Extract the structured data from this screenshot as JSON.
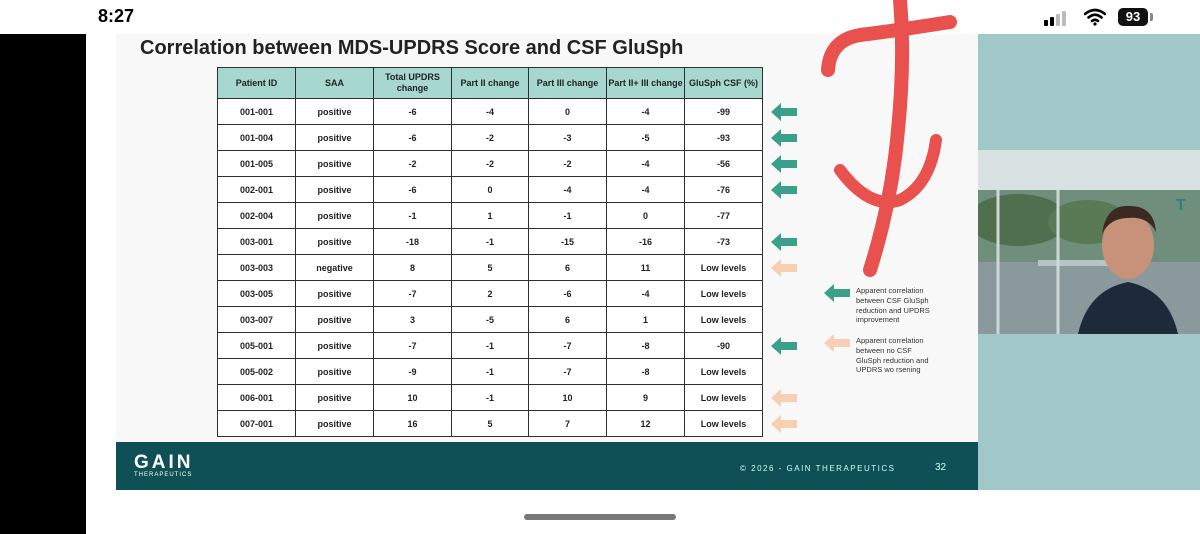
{
  "status_bar": {
    "time": "8:27",
    "battery": "93"
  },
  "slide": {
    "title": "Correlation between MDS-UPDRS Score and CSF GluSph",
    "columns": [
      "Patient ID",
      "SAA",
      "Total UPDRS change",
      "Part II change",
      "Part III change",
      "Part II+ III change",
      "GluSph CSF (%)"
    ],
    "rows": [
      {
        "cells": [
          "001-001",
          "positive",
          "-6",
          "-4",
          "0",
          "-4",
          "-99"
        ],
        "shade": [
          "",
          "",
          "teal",
          "teal",
          "",
          "teal",
          "teal"
        ],
        "arrow": "teal"
      },
      {
        "cells": [
          "001-004",
          "positive",
          "-6",
          "-2",
          "-3",
          "-5",
          "-93"
        ],
        "shade": [
          "",
          "",
          "teal",
          "teal",
          "teal",
          "teal",
          "teal"
        ],
        "arrow": "teal"
      },
      {
        "cells": [
          "001-005",
          "positive",
          "-2",
          "-2",
          "-2",
          "-4",
          "-56"
        ],
        "shade": [
          "",
          "",
          "teal",
          "teal",
          "teal",
          "teal",
          "teal"
        ],
        "arrow": "teal"
      },
      {
        "cells": [
          "002-001",
          "positive",
          "-6",
          "0",
          "-4",
          "-4",
          "-76"
        ],
        "shade": [
          "",
          "",
          "teal",
          "",
          "teal",
          "teal",
          "teal"
        ],
        "arrow": "teal"
      },
      {
        "cells": [
          "002-004",
          "positive",
          "-1",
          "1",
          "-1",
          "0",
          "-77"
        ],
        "shade": [
          "",
          "",
          "",
          "",
          "",
          "",
          "teal"
        ],
        "arrow": ""
      },
      {
        "cells": [
          "003-001",
          "positive",
          "-18",
          "-1",
          "-15",
          "-16",
          "-73"
        ],
        "shade": [
          "",
          "",
          "teal",
          "",
          "teal",
          "teal",
          "teal"
        ],
        "arrow": "teal"
      },
      {
        "cells": [
          "003-003",
          "negative",
          "8",
          "5",
          "6",
          "11",
          "Low levels"
        ],
        "shade": [
          "",
          "",
          "peach",
          "peach",
          "peach",
          "peach",
          ""
        ],
        "arrow": "peach"
      },
      {
        "cells": [
          "003-005",
          "positive",
          "-7",
          "2",
          "-6",
          "-4",
          "Low levels"
        ],
        "shade": [
          "",
          "",
          "teal",
          "peach",
          "teal",
          "teal",
          ""
        ],
        "arrow": ""
      },
      {
        "cells": [
          "003-007",
          "positive",
          "3",
          "-5",
          "6",
          "1",
          "Low levels"
        ],
        "shade": [
          "",
          "",
          "peach",
          "teal",
          "peach",
          "",
          ""
        ],
        "arrow": ""
      },
      {
        "cells": [
          "005-001",
          "positive",
          "-7",
          "-1",
          "-7",
          "-8",
          "-90"
        ],
        "shade": [
          "",
          "",
          "teal",
          "",
          "teal",
          "teal",
          "teal"
        ],
        "arrow": "teal"
      },
      {
        "cells": [
          "005-002",
          "positive",
          "-9",
          "-1",
          "-7",
          "-8",
          "Low levels"
        ],
        "shade": [
          "",
          "",
          "teal",
          "",
          "teal",
          "teal",
          ""
        ],
        "arrow": ""
      },
      {
        "cells": [
          "006-001",
          "positive",
          "10",
          "-1",
          "10",
          "9",
          "Low levels"
        ],
        "shade": [
          "",
          "",
          "peach",
          "",
          "peach",
          "peach",
          ""
        ],
        "arrow": "peach"
      },
      {
        "cells": [
          "007-001",
          "positive",
          "16",
          "5",
          "7",
          "12",
          "Low levels"
        ],
        "shade": [
          "",
          "",
          "peach",
          "peach",
          "peach",
          "peach",
          ""
        ],
        "arrow": "peach"
      }
    ],
    "legend": {
      "teal_text": "Apparent correlation between CSF GluSph reduction and UPDRS improvement",
      "peach_text": "Apparent correlation between no CSF GluSph reduction and UPDRS wo rsening"
    },
    "footer": {
      "logo": "GAIN",
      "logo_sub": "THERAPEUTICS",
      "copyright": "© 2026 - GAIN THERAPEUTICS",
      "page_number": "32"
    }
  },
  "colors": {
    "teal": "#3aa08a",
    "peach": "#f7d0b4",
    "header": "#a6d8d0",
    "footer": "#0e5055",
    "annotation": "#e8514e"
  }
}
